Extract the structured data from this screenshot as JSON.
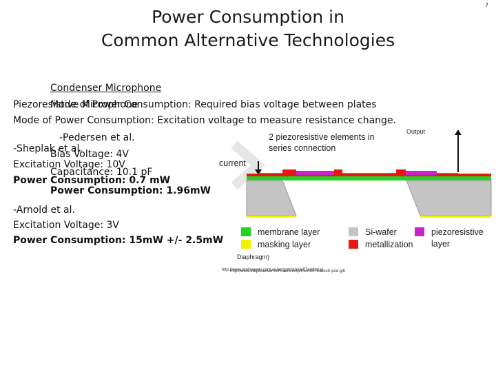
{
  "slide_number": "7",
  "title_line1": "Power Consumption in",
  "title_line2": "Common Alternative Technologies",
  "condenser": {
    "heading": "Condenser Microphone",
    "mode": "Mode of Power Consumption:  Required bias voltage between plates",
    "author": "-Pedersen et al.",
    "bias": "Bias Voltage: 4V",
    "capacitance": "Capacitance: 10.1 pF",
    "power": "Power Consumption: 1.96mW"
  },
  "piezo": {
    "heading": "Piezoresistive Microphone",
    "mode": "Mode of Power Consumption:  Excitation voltage to measure resistance change.",
    "sheplak": {
      "author": "-Sheplak et al.",
      "excitation": "Excitation Voltage: 10V",
      "power": "Power Consumption: 0.7 mW"
    },
    "arnold": {
      "author": "-Arnold et al.",
      "excitation": "Excitation Voltage: 3V",
      "power": "Power Consumption: 15mW +/- 2.5mW"
    }
  },
  "diagram": {
    "label_piezo": "2 piezoresistive elements in",
    "label_series": "series connection",
    "label_current": "current",
    "label_output": "Output",
    "label_diaphragm": "Diaphragm)",
    "legend": [
      {
        "label": "membrane layer",
        "color": "#22d422"
      },
      {
        "label": "masking layer",
        "color": "#f2f200"
      },
      {
        "label": "Si-wafer",
        "color": "#c4c4c4"
      },
      {
        "label": "metallization",
        "color": "#e81515"
      },
      {
        "label": "piezoresistive",
        "color": "#cc22cc"
      },
      {
        "label": "layer",
        "color": ""
      }
    ],
    "url_front": "http://www.mepaluewer.com.au/en/ctp/micro/07e/electr-p/ar.g4l",
    "url_back": "http://www.ptoinyewer.com.au/en/gr/micro/a/07e/pt/ar.gl"
  }
}
